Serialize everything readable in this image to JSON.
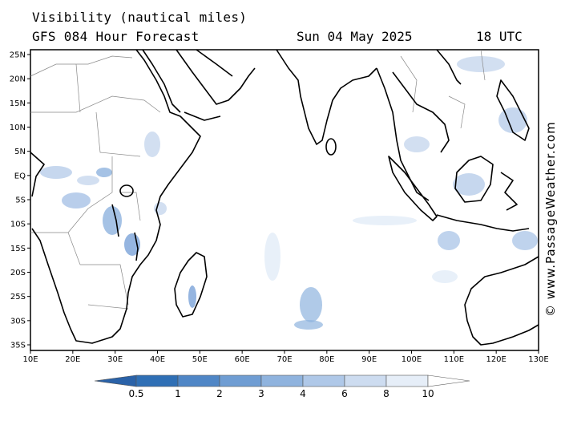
{
  "header": {
    "title": "Visibility (nautical miles)",
    "subtitle": "GFS 084 Hour Forecast",
    "date": "Sun 04 May 2025",
    "time": "18 UTC"
  },
  "credit": "© www.PassageWeather.com",
  "chart_data": {
    "type": "heatmap",
    "variable": "Visibility",
    "units": "nautical miles",
    "xlim": [
      10,
      130
    ],
    "ylim": [
      -36,
      26
    ],
    "x_ticks": [
      "10E",
      "20E",
      "30E",
      "40E",
      "50E",
      "60E",
      "70E",
      "80E",
      "90E",
      "100E",
      "110E",
      "120E",
      "130E"
    ],
    "y_ticks": [
      "25N",
      "20N",
      "15N",
      "10N",
      "5N",
      "EQ",
      "5S",
      "10S",
      "15S",
      "20S",
      "25S",
      "30S",
      "35S"
    ],
    "colorbar": {
      "labels": [
        "0.5",
        "1",
        "2",
        "3",
        "4",
        "6",
        "8",
        "10"
      ],
      "colors": [
        "#2f6fb5",
        "#4f86c6",
        "#6f9dd3",
        "#8fb3de",
        "#afc8e8",
        "#cddcf0",
        "#e6eef8",
        "#ffffff"
      ]
    },
    "low_visibility_regions": [
      {
        "lon": 25,
        "lat": 3,
        "level": "4-8"
      },
      {
        "lon": 34,
        "lat": -5,
        "level": "3-6"
      },
      {
        "lon": 40,
        "lat": 8,
        "level": "6-8"
      },
      {
        "lon": 47,
        "lat": -20,
        "level": "3-6"
      },
      {
        "lon": 76,
        "lat": -24,
        "level": "3-6"
      },
      {
        "lon": 107,
        "lat": 5,
        "level": "6-8"
      },
      {
        "lon": 115,
        "lat": 1,
        "level": "4-8"
      },
      {
        "lon": 122,
        "lat": 12,
        "level": "6-8"
      },
      {
        "lon": 127,
        "lat": -12,
        "level": "4-8"
      },
      {
        "lon": 105,
        "lat": -15,
        "level": "6-8"
      }
    ]
  }
}
